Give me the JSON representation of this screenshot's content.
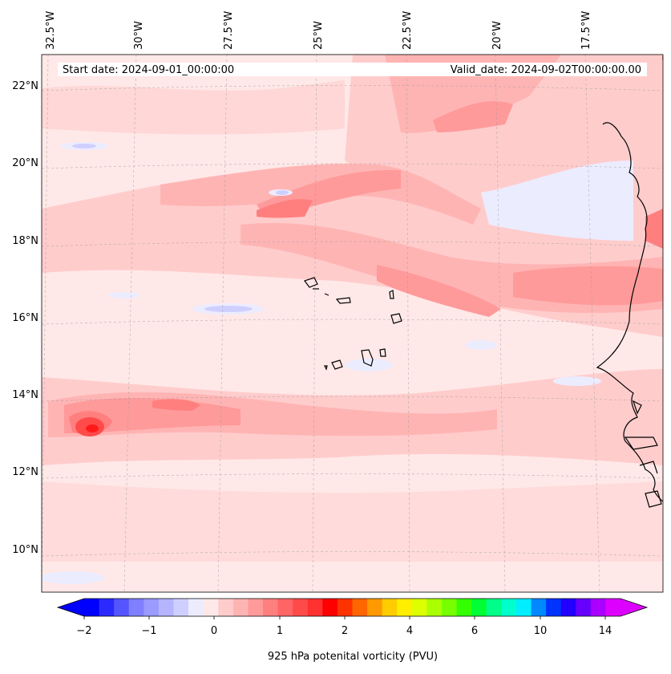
{
  "header": {
    "start_date": "Start date: 2024-09-01_00:00:00",
    "valid_date": "Valid_date: 2024-09-02T00:00:00.00"
  },
  "map": {
    "longitude_labels": [
      "32.5°W",
      "30°W",
      "27.5°W",
      "25°W",
      "22.5°W",
      "20°W",
      "17.5°W"
    ],
    "latitude_labels": [
      "22°N",
      "20°N",
      "18°N",
      "16°N",
      "14°N",
      "12°N",
      "10°N"
    ],
    "extent": {
      "lon_min": -33,
      "lon_max": -15.5,
      "lat_min": 8.9,
      "lat_max": 22.8
    },
    "field": "925 hPa potential vorticity",
    "features": [
      {
        "name": "background",
        "level_color": "#ffe8e8"
      },
      {
        "name": "vorticity-band-north",
        "level_color": "#ff9a9a"
      },
      {
        "name": "vorticity-band-central",
        "level_color": "#ff7f7f"
      },
      {
        "name": "vorticity-band-south",
        "level_color": "#ff8c8c"
      },
      {
        "name": "vorticity-maximum-south",
        "level_color": "#ff3030"
      },
      {
        "name": "negative-patches",
        "level_color": "#e8e8ff"
      }
    ],
    "coastline": "West Africa",
    "islands": "Cabo Verde"
  },
  "colorbar": {
    "label": "925 hPa potenital vorticity (PVU)",
    "tick_labels": [
      "−2",
      "−1",
      "0",
      "1",
      "2",
      "4",
      "6",
      "10",
      "14"
    ],
    "colors": [
      "#0000ff",
      "#2a2aff",
      "#5555ff",
      "#7f7fff",
      "#9a9aff",
      "#b4b4ff",
      "#cfcfff",
      "#ececff",
      "#ffe8e8",
      "#ffcccc",
      "#ffb4b4",
      "#ff9a9a",
      "#ff7f7f",
      "#ff6565",
      "#ff4a4a",
      "#ff3030",
      "#ff0000",
      "#ff3300",
      "#ff6600",
      "#ff9900",
      "#ffcc00",
      "#ffee00",
      "#ddff00",
      "#aaff00",
      "#77ff00",
      "#33ff00",
      "#00ff33",
      "#00ff88",
      "#00ffcc",
      "#00eeff",
      "#0088ff",
      "#0033ff",
      "#2200ff",
      "#6600ff",
      "#aa00ff",
      "#dd00ff"
    ],
    "under_color": "#0000ff",
    "over_color": "#dd00ff"
  }
}
